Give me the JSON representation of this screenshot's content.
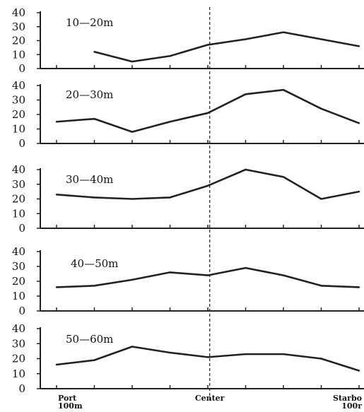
{
  "chart_data": {
    "type": "line",
    "x_labels": [
      {
        "index": 0,
        "lines": [
          "Port",
          "100m"
        ]
      },
      {
        "index": 4,
        "lines": [
          "Center",
          ""
        ]
      },
      {
        "index": 8,
        "lines": [
          "Starbo",
          "100r"
        ]
      }
    ],
    "center_line": {
      "x_index": 4.05,
      "style": "dashed"
    },
    "grid": false,
    "color": "#222222",
    "panels": [
      {
        "title": "10—20m",
        "ylim": [
          0,
          40
        ],
        "yticks": [
          "0",
          "10",
          "20",
          "30",
          "40"
        ],
        "x": [
          1,
          2,
          3,
          4,
          5,
          6,
          7,
          8
        ],
        "values": [
          12,
          5,
          9,
          17,
          21,
          26,
          21,
          16
        ]
      },
      {
        "title": "20—30m",
        "ylim": [
          0,
          40
        ],
        "yticks": [
          "0",
          "10",
          "20",
          "30",
          "40"
        ],
        "x": [
          0,
          1,
          2,
          3,
          4,
          5,
          6,
          7,
          8
        ],
        "values": [
          15,
          17,
          8,
          15,
          21,
          34,
          37,
          24,
          14
        ]
      },
      {
        "title": "30—40m",
        "ylim": [
          0,
          40
        ],
        "yticks": [
          "0",
          "10",
          "20",
          "30",
          "40"
        ],
        "x": [
          0,
          1,
          2,
          3,
          4,
          5,
          6,
          7,
          8
        ],
        "values": [
          23,
          21,
          20,
          21,
          29,
          40,
          35,
          20,
          25
        ]
      },
      {
        "title": "40—50m",
        "ylim": [
          0,
          40
        ],
        "yticks": [
          "0",
          "10",
          "20",
          "30",
          "40"
        ],
        "x": [
          0,
          1,
          2,
          3,
          4,
          5,
          6,
          7,
          8
        ],
        "values": [
          16,
          17,
          21,
          26,
          24,
          29,
          24,
          17,
          16
        ]
      },
      {
        "title": "50—60m",
        "ylim": [
          0,
          40
        ],
        "yticks": [
          "0",
          "10",
          "20",
          "30",
          "40"
        ],
        "x": [
          0,
          1,
          2,
          3,
          4,
          5,
          6,
          7,
          8
        ],
        "values": [
          16,
          19,
          28,
          24,
          21,
          23,
          23,
          20,
          12
        ]
      }
    ]
  }
}
